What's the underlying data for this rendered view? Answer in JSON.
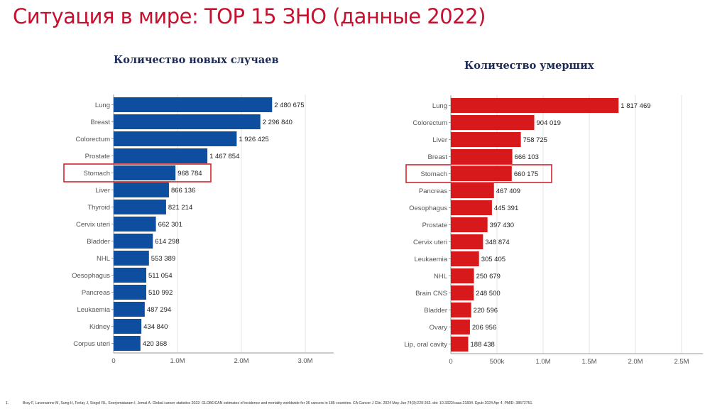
{
  "slide": {
    "title": "Ситуация в мире: TOP 15 ЗНО (данные 2022)",
    "footnote_number": "1.",
    "footnote": "Bray F, Laversanne M, Sung H, Ferlay J, Siegel RL, Soerjomataram I, Jemal A. Global cancer statistics 2022: GLOBOCAN estimates of incidence and mortality worldwide for 36 cancers in 185 countries. CA Cancer J Clin. 2024 May-Jun;74(3):229-263. doi: 10.3322/caac.21834. Epub 2024 Apr 4. PMID: 38572751."
  },
  "chart_data": [
    {
      "type": "bar",
      "orientation": "horizontal",
      "title": "Количество новых случаев",
      "color": "#0d4f9e",
      "highlight": "Stomach",
      "highlight_color": "#d0262e",
      "categories": [
        "Lung",
        "Breast",
        "Colorectum",
        "Prostate",
        "Stomach",
        "Liver",
        "Thyroid",
        "Cervix uteri",
        "Bladder",
        "NHL",
        "Oesophagus",
        "Pancreas",
        "Leukaemia",
        "Kidney",
        "Corpus uteri"
      ],
      "values": [
        2480675,
        2296840,
        1926425,
        1467854,
        968784,
        866136,
        821214,
        662301,
        614298,
        553389,
        511054,
        510992,
        487294,
        434840,
        420368
      ],
      "labels": [
        "2 480 675",
        "2 296 840",
        "1 926 425",
        "1 467 854",
        "968 784",
        "866 136",
        "821 214",
        "662 301",
        "614 298",
        "553 389",
        "511 054",
        "510 992",
        "487 294",
        "434 840",
        "420 368"
      ],
      "xlim": [
        0,
        3500000
      ],
      "xticks": [
        0,
        1000000,
        2000000,
        3000000
      ],
      "xtick_labels": [
        "0",
        "1.0M",
        "2.0M",
        "3.0M"
      ],
      "grid": true
    },
    {
      "type": "bar",
      "orientation": "horizontal",
      "title": "Количество умерших",
      "color": "#d7191c",
      "highlight": "Stomach",
      "highlight_color": "#d0262e",
      "categories": [
        "Lung",
        "Colorectum",
        "Liver",
        "Breast",
        "Stomach",
        "Pancreas",
        "Oesophagus",
        "Prostate",
        "Cervix uteri",
        "Leukaemia",
        "NHL",
        "Brain CNS",
        "Bladder",
        "Ovary",
        "Lip, oral cavity"
      ],
      "values": [
        1817469,
        904019,
        758725,
        666103,
        660175,
        467409,
        445391,
        397430,
        348874,
        305405,
        250679,
        248500,
        220596,
        206956,
        188438
      ],
      "labels": [
        "1 817 469",
        "904 019",
        "758 725",
        "666 103",
        "660 175",
        "467 409",
        "445 391",
        "397 430",
        "348 874",
        "305 405",
        "250 679",
        "248 500",
        "220 596",
        "206 956",
        "188 438"
      ],
      "xlim": [
        0,
        2750000
      ],
      "xticks": [
        0,
        500000,
        1000000,
        1500000,
        2000000,
        2500000
      ],
      "xtick_labels": [
        "0",
        "500k",
        "1.0M",
        "1.5M",
        "2.0M",
        "2.5M"
      ],
      "grid": true
    }
  ]
}
